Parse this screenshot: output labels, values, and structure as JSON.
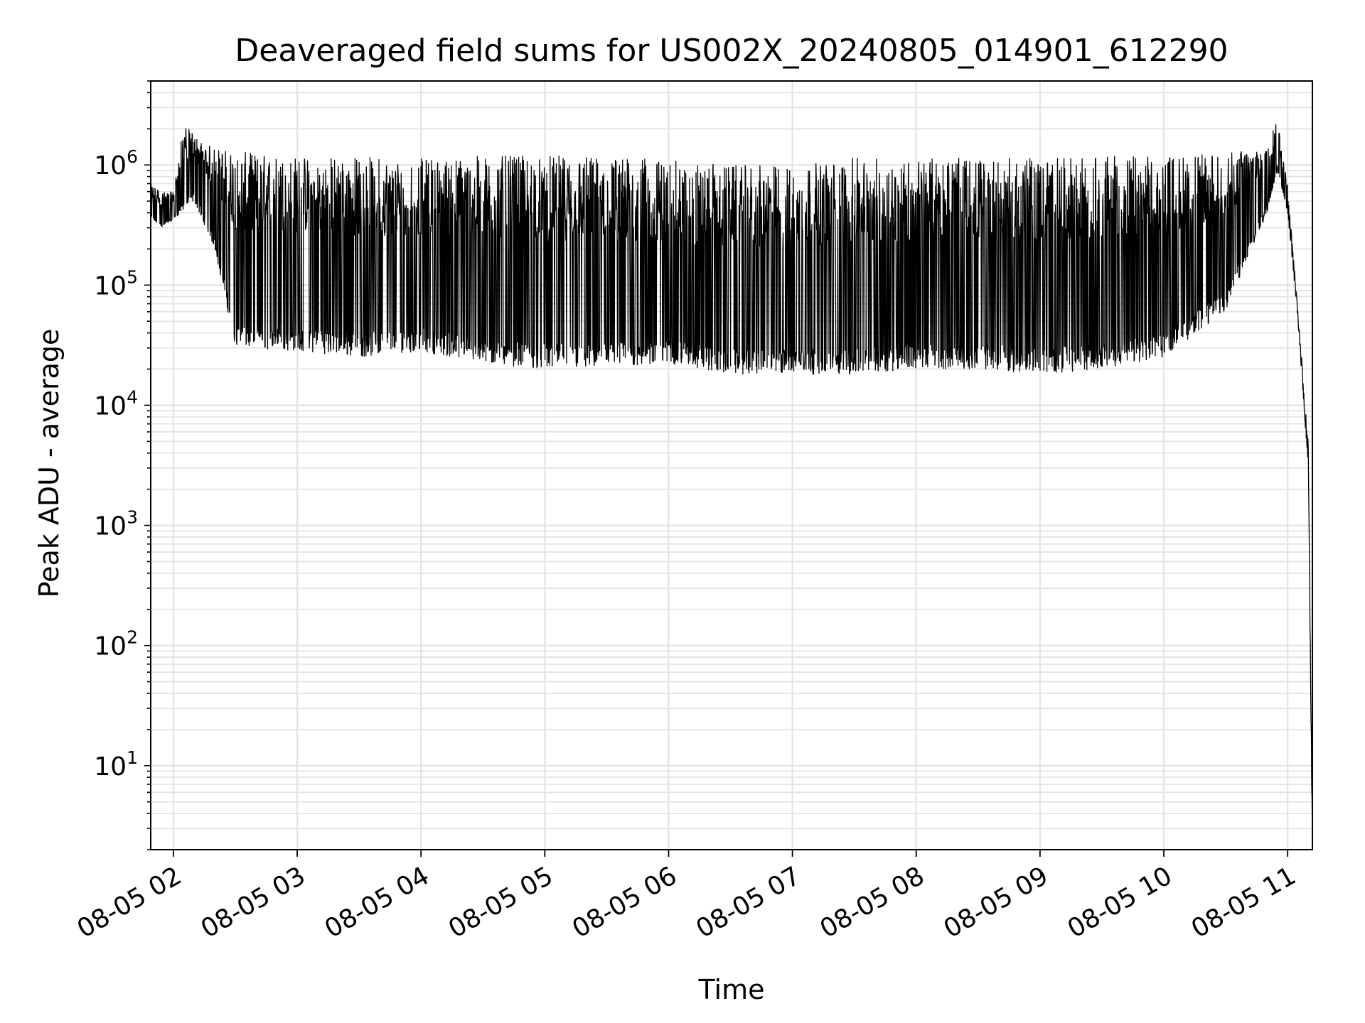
{
  "chart_data": {
    "type": "line",
    "title": "Deaveraged field sums for US002X_20240805_014901_612290",
    "xlabel": "Time",
    "ylabel": "Peak ADU - average",
    "yscale": "log",
    "ylim": [
      2,
      5000000
    ],
    "xlim": [
      "2024-08-05 01:49:01",
      "2024-08-05 11:12:00"
    ],
    "grid": true,
    "line_color": "#000000",
    "x_ticks": [
      "08-05 02",
      "08-05 03",
      "08-05 04",
      "08-05 05",
      "08-05 06",
      "08-05 07",
      "08-05 08",
      "08-05 09",
      "08-05 10",
      "08-05 11"
    ],
    "x_tick_times": [
      "2024-08-05 02:00",
      "2024-08-05 03:00",
      "2024-08-05 04:00",
      "2024-08-05 05:00",
      "2024-08-05 06:00",
      "2024-08-05 07:00",
      "2024-08-05 08:00",
      "2024-08-05 09:00",
      "2024-08-05 10:00",
      "2024-08-05 11:00"
    ],
    "y_ticks": [
      {
        "base": "10",
        "exp": "1",
        "value": 10
      },
      {
        "base": "10",
        "exp": "2",
        "value": 100
      },
      {
        "base": "10",
        "exp": "3",
        "value": 1000
      },
      {
        "base": "10",
        "exp": "4",
        "value": 10000
      },
      {
        "base": "10",
        "exp": "5",
        "value": 100000
      },
      {
        "base": "10",
        "exp": "6",
        "value": 1000000
      }
    ],
    "series": [
      {
        "values_description_note": "",
        "upper_envelope": {
          "x": [
            "2024-08-05 01:49",
            "2024-08-05 01:55",
            "2024-08-05 02:00",
            "2024-08-05 02:05",
            "2024-08-05 02:15",
            "2024-08-05 02:30",
            "2024-08-05 03:00",
            "2024-08-05 03:30",
            "2024-08-05 04:00",
            "2024-08-05 04:30",
            "2024-08-05 05:00",
            "2024-08-05 05:30",
            "2024-08-05 06:00",
            "2024-08-05 06:30",
            "2024-08-05 07:00",
            "2024-08-05 07:30",
            "2024-08-05 08:00",
            "2024-08-05 08:30",
            "2024-08-05 09:00",
            "2024-08-05 09:30",
            "2024-08-05 10:00",
            "2024-08-05 10:30",
            "2024-08-05 10:50",
            "2024-08-05 10:55",
            "2024-08-05 11:00",
            "2024-08-05 11:05",
            "2024-08-05 11:10",
            "2024-08-05 11:12"
          ],
          "y": [
            700000,
            600000,
            600000,
            2200000,
            1500000,
            1300000,
            1200000,
            1200000,
            1150000,
            1200000,
            1200000,
            1200000,
            1100000,
            1000000,
            1000000,
            1150000,
            1150000,
            1150000,
            1150000,
            1200000,
            1200000,
            1250000,
            1500000,
            2500000,
            700000,
            60000,
            5000,
            3
          ]
        },
        "lower_envelope": {
          "x": [
            "2024-08-05 01:49",
            "2024-08-05 01:55",
            "2024-08-05 02:00",
            "2024-08-05 02:10",
            "2024-08-05 02:20",
            "2024-08-05 02:30",
            "2024-08-05 03:00",
            "2024-08-05 03:30",
            "2024-08-05 04:00",
            "2024-08-05 04:30",
            "2024-08-05 05:00",
            "2024-08-05 05:30",
            "2024-08-05 06:00",
            "2024-08-05 06:30",
            "2024-08-05 07:00",
            "2024-08-05 07:30",
            "2024-08-05 08:00",
            "2024-08-05 08:30",
            "2024-08-05 09:00",
            "2024-08-05 09:30",
            "2024-08-05 10:00",
            "2024-08-05 10:30",
            "2024-08-05 10:50",
            "2024-08-05 10:55",
            "2024-08-05 11:00",
            "2024-08-05 11:05",
            "2024-08-05 11:10",
            "2024-08-05 11:12"
          ],
          "y": [
            350000,
            300000,
            350000,
            500000,
            200000,
            30000,
            28000,
            25000,
            28000,
            22000,
            20000,
            20000,
            22000,
            18000,
            18000,
            18000,
            20000,
            20000,
            18000,
            20000,
            25000,
            60000,
            400000,
            900000,
            400000,
            50000,
            3000,
            2
          ]
        }
      }
    ]
  }
}
